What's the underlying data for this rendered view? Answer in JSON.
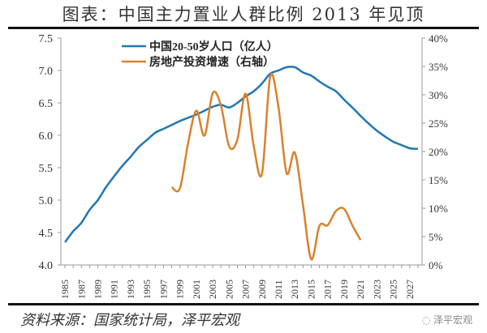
{
  "header": {
    "title": "图表：中国主力置业人群比例 2013 年见顶"
  },
  "footer": {
    "source": "资料来源：国家统计局，泽平宏观",
    "watermark": "泽平宏观"
  },
  "chart_data": {
    "type": "line",
    "title": "图表：中国主力置业人群比例 2013 年见顶",
    "grid": false,
    "legend_position": "top-center",
    "x_ticks": [
      "1985",
      "1987",
      "1989",
      "1991",
      "1993",
      "1995",
      "1997",
      "1999",
      "2001",
      "2003",
      "2005",
      "2007",
      "2009",
      "2011",
      "2013",
      "2015",
      "2017",
      "2019",
      "2021",
      "2023",
      "2025",
      "2027"
    ],
    "y_left": {
      "range": [
        4.0,
        7.5
      ],
      "ticks": [
        "4.0",
        "4.5",
        "5.0",
        "5.5",
        "6.0",
        "6.5",
        "7.0",
        "7.5"
      ]
    },
    "y_right": {
      "range": [
        0,
        40
      ],
      "unit": "%",
      "ticks": [
        "0%",
        "5%",
        "10%",
        "15%",
        "20%",
        "25%",
        "30%",
        "35%",
        "40%"
      ]
    },
    "series": [
      {
        "name": "中国20-50岁人口（亿人）",
        "axis": "left",
        "color": "#1f77b4",
        "x": [
          1985,
          1986,
          1987,
          1988,
          1989,
          1990,
          1991,
          1992,
          1993,
          1994,
          1995,
          1996,
          1997,
          1998,
          1999,
          2000,
          2001,
          2002,
          2003,
          2004,
          2005,
          2006,
          2007,
          2008,
          2009,
          2010,
          2011,
          2012,
          2013,
          2014,
          2015,
          2016,
          2017,
          2018,
          2019,
          2020,
          2021,
          2022,
          2023,
          2024,
          2025,
          2026,
          2027,
          2028
        ],
        "values": [
          4.35,
          4.52,
          4.65,
          4.85,
          5.0,
          5.2,
          5.37,
          5.53,
          5.67,
          5.82,
          5.93,
          6.04,
          6.1,
          6.16,
          6.22,
          6.27,
          6.32,
          6.38,
          6.44,
          6.47,
          6.43,
          6.5,
          6.6,
          6.68,
          6.8,
          6.95,
          7.0,
          7.05,
          7.05,
          6.97,
          6.92,
          6.83,
          6.75,
          6.68,
          6.55,
          6.43,
          6.3,
          6.18,
          6.07,
          5.98,
          5.9,
          5.85,
          5.8,
          5.79
        ]
      },
      {
        "name": "房地产投资增速（右轴）",
        "axis": "right",
        "color": "#d9822b",
        "x": [
          1998,
          1999,
          2000,
          2001,
          2002,
          2003,
          2004,
          2005,
          2006,
          2007,
          2008,
          2009,
          2010,
          2011,
          2012,
          2013,
          2014,
          2015,
          2016,
          2017,
          2018,
          2019,
          2020,
          2021
        ],
        "values": [
          13.7,
          13.5,
          21.5,
          27.2,
          22.8,
          30.3,
          28.1,
          20.9,
          22.1,
          30.2,
          20.9,
          16.1,
          33.2,
          27.9,
          16.2,
          19.8,
          10.5,
          1.0,
          6.9,
          7.0,
          9.5,
          9.9,
          7.0,
          4.4
        ]
      }
    ]
  }
}
